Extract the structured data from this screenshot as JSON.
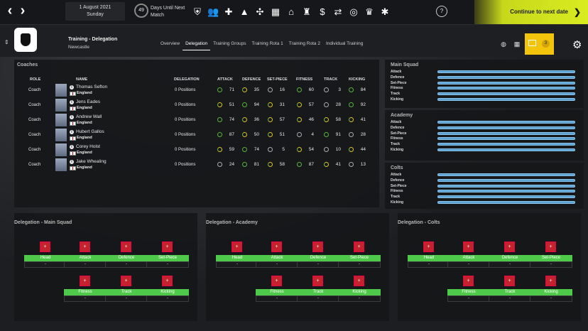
{
  "topbar": {
    "date": "1 August 2021",
    "weekday": "Sunday",
    "days_count": "49",
    "days_label_1": "Days Until Next",
    "days_label_2": "Match",
    "speed": "?",
    "continue": "Continue to next date"
  },
  "header": {
    "title": "Training - Delegation",
    "club": "Newcastle",
    "tabs": [
      "Overview",
      "Delegation",
      "Training Groups",
      "Training Rota 1",
      "Training Rota 2",
      "Individual Training"
    ],
    "inbox_count": "3"
  },
  "coaches": {
    "title": "Coaches",
    "headers": {
      "role": "ROLE",
      "name": "NAME",
      "delegation": "DELEGATION",
      "attack": "ATTACK",
      "defence": "DEFENCE",
      "setpiece": "SET-PIECE",
      "fitness": "FITNESS",
      "track": "TRACK",
      "kicking": "KICKING"
    },
    "rows": [
      {
        "role": "Coach",
        "name": "Thomas Sefton",
        "nation": "England",
        "delegation": "0 Positions",
        "attack": "71",
        "defence": "35",
        "setpiece": "16",
        "fitness": "60",
        "track": "3",
        "kicking": "84"
      },
      {
        "role": "Coach",
        "name": "Jens Eades",
        "nation": "England",
        "delegation": "0 Positions",
        "attack": "51",
        "defence": "94",
        "setpiece": "31",
        "fitness": "57",
        "track": "28",
        "kicking": "92"
      },
      {
        "role": "Coach",
        "name": "Andrew Wall",
        "nation": "England",
        "delegation": "0 Positions",
        "attack": "74",
        "defence": "36",
        "setpiece": "57",
        "fitness": "46",
        "track": "58",
        "kicking": "41"
      },
      {
        "role": "Coach",
        "name": "Hubert Gallos",
        "nation": "England",
        "delegation": "0 Positions",
        "attack": "87",
        "defence": "50",
        "setpiece": "51",
        "fitness": "4",
        "track": "91",
        "kicking": "28"
      },
      {
        "role": "Coach",
        "name": "Corey Holst",
        "nation": "England",
        "delegation": "0 Positions",
        "attack": "59",
        "defence": "74",
        "setpiece": "5",
        "fitness": "54",
        "track": "10",
        "kicking": "44"
      },
      {
        "role": "Coach",
        "name": "Jake Whealing",
        "nation": "England",
        "delegation": "0 Positions",
        "attack": "24",
        "defence": "81",
        "setpiece": "58",
        "fitness": "87",
        "track": "41",
        "kicking": "13"
      }
    ]
  },
  "squads": [
    {
      "title": "Main Squad",
      "attrs": [
        "Attack",
        "Defence",
        "Set-Piece",
        "Fitness",
        "Track",
        "Kicking"
      ]
    },
    {
      "title": "Academy",
      "attrs": [
        "Attack",
        "Defence",
        "Set-Piece",
        "Fitness",
        "Track",
        "Kicking"
      ]
    },
    {
      "title": "Colts",
      "attrs": [
        "Attack",
        "Defence",
        "Set-Piece",
        "Fitness",
        "Track",
        "Kicking"
      ]
    }
  ],
  "delegation": [
    {
      "title": "Delegation - Main Squad"
    },
    {
      "title": "Delegation - Academy"
    },
    {
      "title": "Delegation - Colts"
    }
  ],
  "slots": [
    "Head",
    "Attack",
    "Defence",
    "Set-Piece",
    "Fitness",
    "Track",
    "Kicking"
  ],
  "slot_button": "+",
  "slot_value": "-"
}
